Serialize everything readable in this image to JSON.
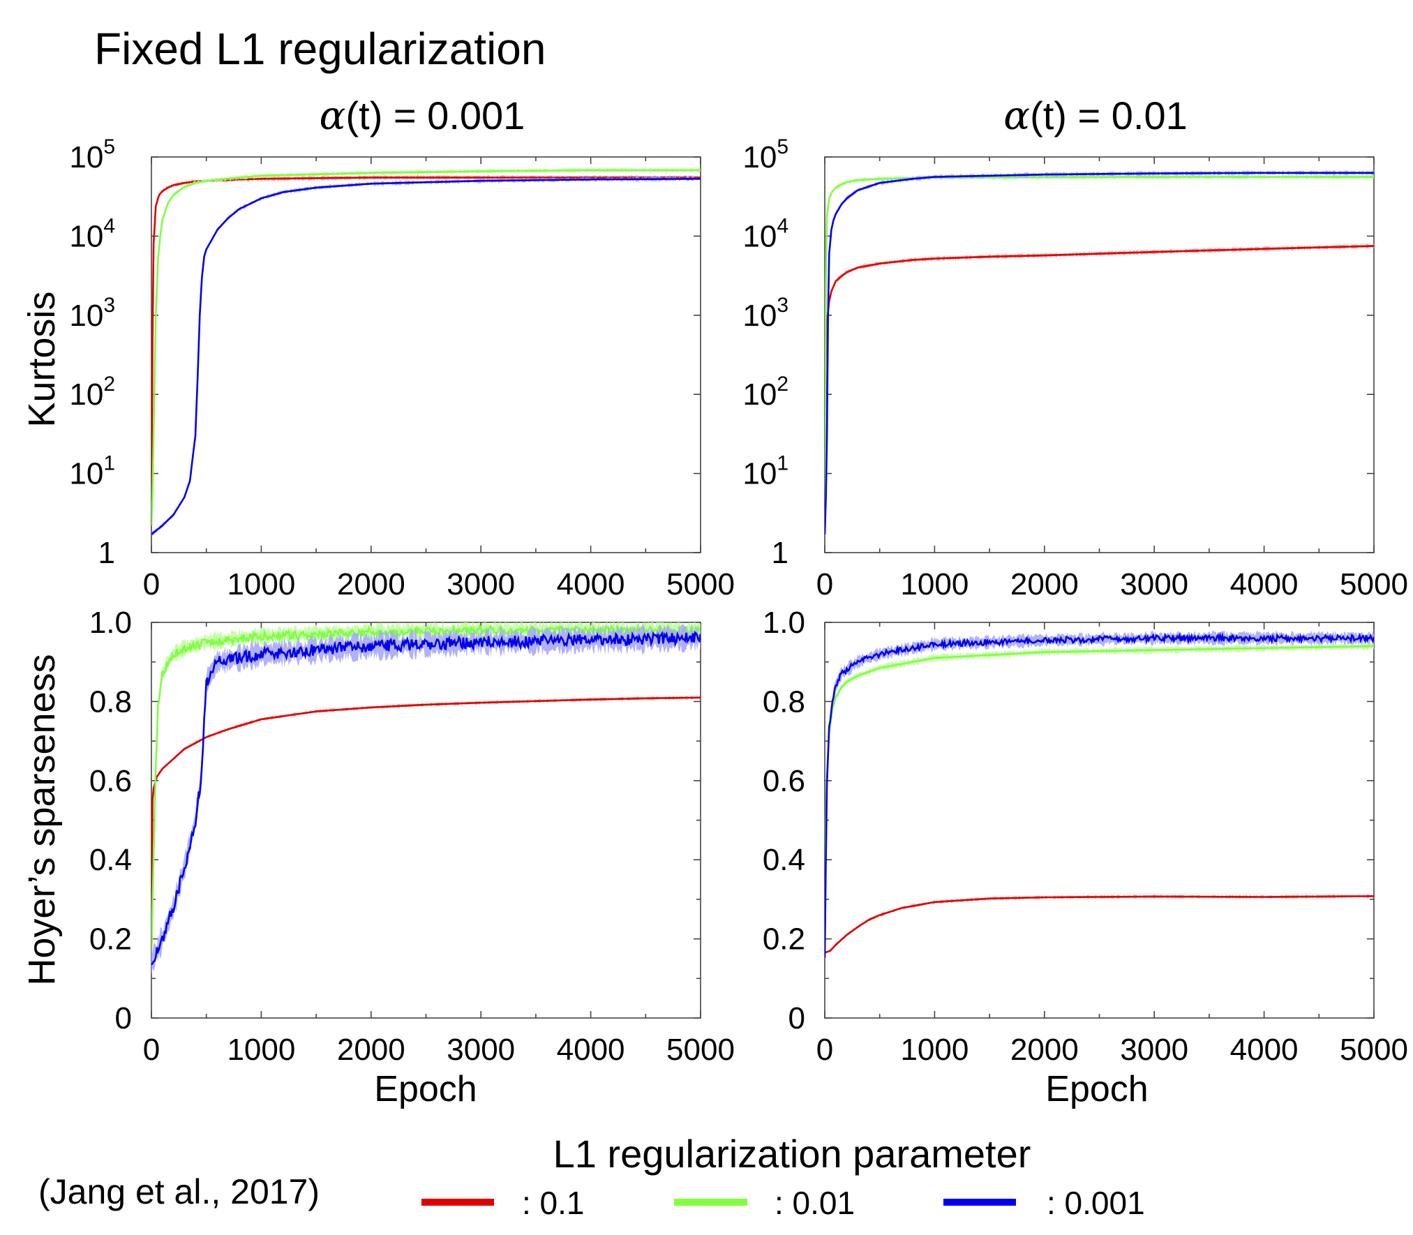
{
  "figure": {
    "title": "Fixed L1 regularization",
    "citation": "(Jang et al., 2017)",
    "legend_title": "L1 regularization parameter",
    "legend_items": [
      {
        "label": ": 0.1",
        "color": "#e00000"
      },
      {
        "label": ": 0.01",
        "color": "#80ff40"
      },
      {
        "label": ": 0.001",
        "color": "#0000ee"
      }
    ],
    "columns": [
      {
        "title_prefix": "α",
        "title_suffix": "(t) = 0.001"
      },
      {
        "title_prefix": "α",
        "title_suffix": "(t) = 0.01"
      }
    ],
    "row_labels": [
      "Kurtosis",
      "Hoyer’s sparseness"
    ],
    "xlabel": "Epoch"
  },
  "chart_data": [
    {
      "type": "line",
      "panel": "top-left",
      "ylabel": "Kurtosis",
      "xlabel": "",
      "xlim": [
        0,
        5000
      ],
      "ylim_log10": [
        0,
        5
      ],
      "yscale": "log",
      "xticks": [
        "0",
        "1000",
        "2000",
        "3000",
        "4000",
        "5000"
      ],
      "yticks": [
        {
          "value": 1,
          "base": "1",
          "exp": ""
        },
        {
          "value": 10,
          "base": "10",
          "exp": "1"
        },
        {
          "value": 100,
          "base": "10",
          "exp": "2"
        },
        {
          "value": 1000,
          "base": "10",
          "exp": "3"
        },
        {
          "value": 10000,
          "base": "10",
          "exp": "4"
        },
        {
          "value": 100000,
          "base": "10",
          "exp": "5"
        }
      ],
      "series": [
        {
          "name": "0.1",
          "color": "#e00000",
          "band": "#f4a0a0",
          "x": [
            0,
            5,
            10,
            20,
            40,
            70,
            100,
            150,
            200,
            300,
            400,
            500,
            800,
            1000,
            1500,
            2000,
            3000,
            4000,
            5000
          ],
          "y": [
            2.2,
            20,
            500,
            8000,
            24000,
            33000,
            37000,
            41000,
            44000,
            47000,
            49000,
            50000,
            52000,
            53000,
            54000,
            55000,
            55000,
            55000,
            55000
          ]
        },
        {
          "name": "0.01",
          "color": "#80ff40",
          "band": "#c0ffa0",
          "x": [
            0,
            10,
            20,
            40,
            60,
            80,
            100,
            150,
            200,
            300,
            400,
            500,
            800,
            1000,
            2000,
            3000,
            4000,
            5000
          ],
          "y": [
            2.2,
            5,
            30,
            1000,
            5000,
            10000,
            16000,
            26000,
            33000,
            42000,
            47000,
            50000,
            55000,
            58000,
            63000,
            66000,
            68000,
            68000
          ]
        },
        {
          "name": "0.001",
          "color": "#0000ee",
          "band": "#a8a8f8",
          "x": [
            0,
            100,
            200,
            300,
            350,
            400,
            420,
            440,
            460,
            480,
            500,
            550,
            600,
            700,
            800,
            1000,
            1200,
            1500,
            2000,
            3000,
            4000,
            5000
          ],
          "y": [
            1.7,
            2.2,
            3,
            5,
            8,
            30,
            150,
            1000,
            3000,
            5500,
            6800,
            9000,
            12000,
            17000,
            22000,
            30000,
            36000,
            41000,
            46000,
            50000,
            52000,
            53000
          ]
        }
      ]
    },
    {
      "type": "line",
      "panel": "top-right",
      "ylabel": "",
      "xlabel": "",
      "xlim": [
        0,
        5000
      ],
      "ylim_log10": [
        0,
        5
      ],
      "yscale": "log",
      "xticks": [
        "0",
        "1000",
        "2000",
        "3000",
        "4000",
        "5000"
      ],
      "yticks": [
        {
          "value": 1,
          "base": "1",
          "exp": ""
        },
        {
          "value": 10,
          "base": "10",
          "exp": "1"
        },
        {
          "value": 100,
          "base": "10",
          "exp": "2"
        },
        {
          "value": 1000,
          "base": "10",
          "exp": "3"
        },
        {
          "value": 10000,
          "base": "10",
          "exp": "4"
        },
        {
          "value": 100000,
          "base": "10",
          "exp": "5"
        }
      ],
      "series": [
        {
          "name": "0.1",
          "color": "#e00000",
          "band": "#f4a0a0",
          "x": [
            0,
            5,
            10,
            20,
            40,
            60,
            100,
            150,
            200,
            300,
            500,
            800,
            1000,
            1500,
            2000,
            2500,
            3000,
            3500,
            4000,
            4500,
            5000
          ],
          "y": [
            5,
            100,
            300,
            800,
            1500,
            2000,
            2700,
            3100,
            3500,
            4000,
            4500,
            5000,
            5200,
            5500,
            5700,
            6000,
            6300,
            6600,
            6900,
            7200,
            7500
          ]
        },
        {
          "name": "0.01",
          "color": "#80ff40",
          "band": "#c0ffa0",
          "x": [
            0,
            5,
            10,
            20,
            40,
            70,
            100,
            150,
            200,
            300,
            500,
            1000,
            2000,
            3000,
            4000,
            5000
          ],
          "y": [
            2.5,
            100,
            3000,
            18000,
            30000,
            37000,
            41000,
            45000,
            48000,
            51000,
            53000,
            55000,
            55500,
            56000,
            56000,
            56000
          ]
        },
        {
          "name": "0.001",
          "color": "#0000ee",
          "band": "#a8a8f8",
          "x": [
            0,
            10,
            20,
            30,
            40,
            60,
            80,
            100,
            150,
            200,
            300,
            500,
            800,
            1000,
            2000,
            3000,
            4000,
            5000
          ],
          "y": [
            1.7,
            5,
            30,
            1000,
            6000,
            12000,
            16000,
            19000,
            25000,
            30000,
            38000,
            47000,
            53000,
            56000,
            60000,
            62000,
            63000,
            63000
          ]
        }
      ]
    },
    {
      "type": "line",
      "panel": "bottom-left",
      "ylabel": "Hoyer’s sparseness",
      "xlabel": "Epoch",
      "xlim": [
        0,
        5000
      ],
      "ylim": [
        0,
        1.0
      ],
      "yscale": "linear",
      "xticks": [
        "0",
        "1000",
        "2000",
        "3000",
        "4000",
        "5000"
      ],
      "yticks": [
        {
          "value": 0,
          "label": "0"
        },
        {
          "value": 0.2,
          "label": "0.2"
        },
        {
          "value": 0.4,
          "label": "0.4"
        },
        {
          "value": 0.6,
          "label": "0.6"
        },
        {
          "value": 0.8,
          "label": "0.8"
        },
        {
          "value": 1.0,
          "label": "1.0"
        }
      ],
      "series": [
        {
          "name": "0.1",
          "color": "#e00000",
          "band": "#f4a0a0",
          "x": [
            0,
            5,
            10,
            20,
            50,
            100,
            200,
            300,
            400,
            500,
            700,
            1000,
            1500,
            2000,
            2500,
            3000,
            3500,
            4000,
            4500,
            5000
          ],
          "y": [
            0.23,
            0.45,
            0.55,
            0.58,
            0.61,
            0.63,
            0.655,
            0.68,
            0.695,
            0.71,
            0.73,
            0.755,
            0.775,
            0.785,
            0.792,
            0.797,
            0.801,
            0.805,
            0.808,
            0.81
          ]
        },
        {
          "name": "0.01",
          "color": "#80ff40",
          "band": "#c0ffa0",
          "x": [
            0,
            20,
            40,
            60,
            80,
            100,
            150,
            200,
            300,
            500,
            800,
            1000,
            2000,
            3000,
            4000,
            5000
          ],
          "y": [
            0.15,
            0.4,
            0.65,
            0.78,
            0.84,
            0.87,
            0.9,
            0.92,
            0.935,
            0.95,
            0.96,
            0.965,
            0.975,
            0.98,
            0.98,
            0.98
          ]
        },
        {
          "name": "0.001",
          "color": "#0000ee",
          "band": "#a8a8f8",
          "x": [
            0,
            50,
            100,
            150,
            200,
            250,
            300,
            350,
            400,
            450,
            480,
            500,
            600,
            800,
            1000,
            1500,
            2000,
            3000,
            4000,
            5000
          ],
          "y": [
            0.14,
            0.17,
            0.2,
            0.24,
            0.28,
            0.33,
            0.38,
            0.44,
            0.5,
            0.6,
            0.75,
            0.85,
            0.9,
            0.91,
            0.92,
            0.93,
            0.94,
            0.95,
            0.955,
            0.96
          ]
        }
      ]
    },
    {
      "type": "line",
      "panel": "bottom-right",
      "ylabel": "",
      "xlabel": "Epoch",
      "xlim": [
        0,
        5000
      ],
      "ylim": [
        0,
        1.0
      ],
      "yscale": "linear",
      "xticks": [
        "0",
        "1000",
        "2000",
        "3000",
        "4000",
        "5000"
      ],
      "yticks": [
        {
          "value": 0,
          "label": "0"
        },
        {
          "value": 0.2,
          "label": "0.2"
        },
        {
          "value": 0.4,
          "label": "0.4"
        },
        {
          "value": 0.6,
          "label": "0.6"
        },
        {
          "value": 0.8,
          "label": "0.8"
        },
        {
          "value": 1.0,
          "label": "1.0"
        }
      ],
      "series": [
        {
          "name": "0.1",
          "color": "#e00000",
          "band": "#f4a0a0",
          "x": [
            0,
            50,
            100,
            200,
            300,
            400,
            500,
            700,
            1000,
            1500,
            2000,
            3000,
            4000,
            5000
          ],
          "y": [
            0.165,
            0.17,
            0.185,
            0.21,
            0.23,
            0.248,
            0.26,
            0.278,
            0.293,
            0.302,
            0.305,
            0.307,
            0.306,
            0.308
          ]
        },
        {
          "name": "0.01",
          "color": "#80ff40",
          "band": "#c0ffa0",
          "x": [
            0,
            10,
            20,
            40,
            70,
            100,
            150,
            200,
            300,
            500,
            800,
            1000,
            2000,
            3000,
            4000,
            5000
          ],
          "y": [
            0.22,
            0.5,
            0.62,
            0.72,
            0.78,
            0.81,
            0.835,
            0.85,
            0.865,
            0.885,
            0.9,
            0.91,
            0.925,
            0.93,
            0.935,
            0.94
          ]
        },
        {
          "name": "0.001",
          "color": "#0000ee",
          "band": "#a8a8f8",
          "x": [
            0,
            10,
            20,
            40,
            70,
            100,
            150,
            200,
            300,
            500,
            800,
            1000,
            2000,
            3000,
            4000,
            5000
          ],
          "y": [
            0.15,
            0.4,
            0.6,
            0.73,
            0.8,
            0.84,
            0.87,
            0.88,
            0.9,
            0.92,
            0.935,
            0.945,
            0.955,
            0.96,
            0.96,
            0.96
          ]
        }
      ]
    }
  ]
}
